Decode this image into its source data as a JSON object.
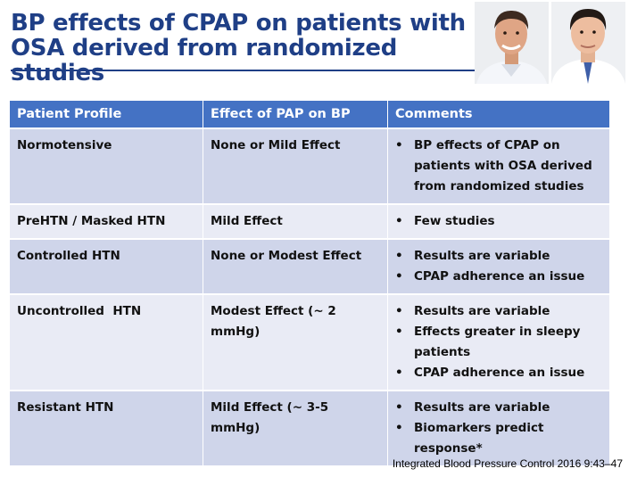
{
  "slide": {
    "title_line1": "BP effects of CPAP on patients with",
    "title_line2": "OSA derived from randomized studies",
    "citation": "Integrated Blood Pressure Control 2016 9:43–47"
  },
  "table": {
    "headers": [
      "Patient Profile",
      "Effect of PAP on BP",
      "Comments"
    ],
    "rows": [
      {
        "profile": "Normotensive",
        "effect": "None or Mild Effect",
        "comments": [
          "BP effects of CPAP on patients with OSA derived from randomized studies"
        ]
      },
      {
        "profile": "PreHTN / Masked HTN",
        "effect": "Mild Effect",
        "comments": [
          "Few studies"
        ]
      },
      {
        "profile": "Controlled HTN",
        "effect": "None or Modest Effect",
        "comments": [
          "Results are variable",
          "CPAP adherence an issue"
        ]
      },
      {
        "profile": "Uncontrolled  HTN",
        "effect": "Modest Effect (~ 2 mmHg)",
        "comments": [
          "Results are variable",
          "Effects greater in sleepy patients",
          "CPAP adherence an issue"
        ]
      },
      {
        "profile": "Resistant HTN",
        "effect": "Mild Effect (~ 3-5 mmHg)",
        "comments": [
          "Results are variable",
          "Biomarkers predict response*"
        ]
      }
    ]
  },
  "colors": {
    "header_bg": "#4472c4",
    "title": "#1f3f86",
    "row_dark": "#cfd5ea",
    "row_light": "#e9ebf5"
  }
}
